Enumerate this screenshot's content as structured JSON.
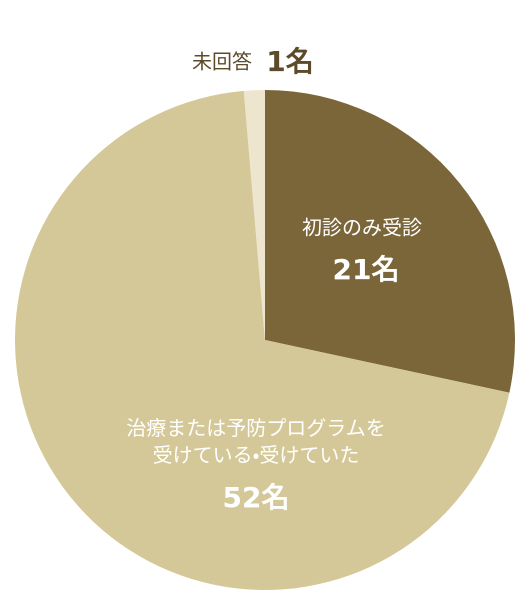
{
  "chart_data": {
    "type": "pie",
    "categories": [
      "初診のみ受診",
      "治療または予防プログラムを\n受けている・受けていた",
      "未回答"
    ],
    "values": [
      21,
      52,
      1
    ],
    "value_labels": [
      "21名",
      "52名",
      "1名"
    ],
    "colors": [
      "#7b6639",
      "#d5c898",
      "#ede5cd"
    ]
  }
}
